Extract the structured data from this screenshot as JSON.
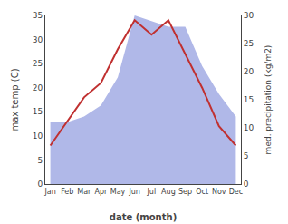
{
  "chart_data": {
    "type": "line",
    "categories": [
      "Jan",
      "Feb",
      "Mar",
      "Apr",
      "May",
      "Jun",
      "Jul",
      "Aug",
      "Sep",
      "Oct",
      "Nov",
      "Dec"
    ],
    "xlabel": "date (month)",
    "ylabel": "max temp (C)",
    "y2label": "med. precipitation (kg/m2)",
    "ylim": [
      0,
      35
    ],
    "yticks": [
      0,
      5,
      10,
      15,
      20,
      25,
      30,
      35
    ],
    "y2lim": [
      0,
      30
    ],
    "y2ticks": [
      0,
      5,
      10,
      15,
      20,
      25,
      30
    ],
    "grid": false,
    "series": [
      {
        "type": "area",
        "color": "#b0b8e8",
        "axis": "y2",
        "values": [
          11,
          11,
          12,
          14,
          19,
          30,
          29,
          28,
          28,
          21,
          16,
          12
        ]
      },
      {
        "type": "line",
        "color": "#c03030",
        "values": [
          8,
          13,
          18,
          21,
          28,
          34,
          31,
          34,
          27,
          20,
          12,
          8
        ]
      }
    ]
  }
}
